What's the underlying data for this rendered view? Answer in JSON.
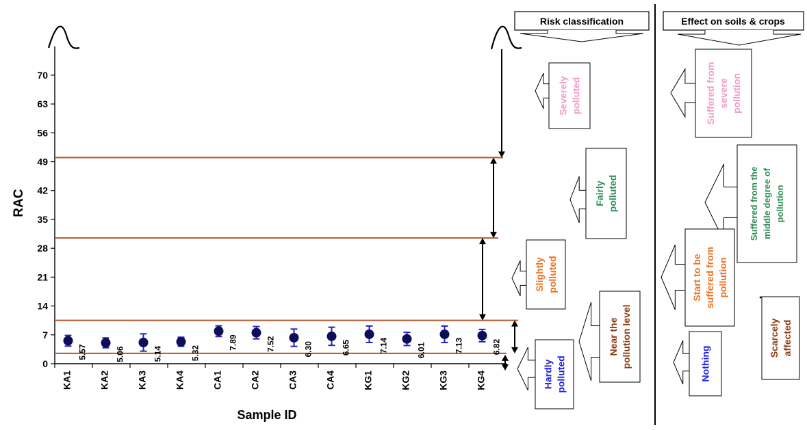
{
  "chart_data": {
    "type": "scatter",
    "xlabel": "Sample ID",
    "ylabel": "RAC",
    "ylim": [
      0,
      77
    ],
    "yticks": [
      0,
      7,
      14,
      21,
      28,
      35,
      42,
      49,
      56,
      63,
      70
    ],
    "grid": false,
    "categories": [
      "KA1",
      "KA2",
      "KA3",
      "KA4",
      "CA1",
      "CA2",
      "CA3",
      "CA4",
      "KG1",
      "KG2",
      "KG3",
      "KG4"
    ],
    "values": [
      5.57,
      5.06,
      5.14,
      5.32,
      7.89,
      7.52,
      6.3,
      6.65,
      7.14,
      6.01,
      7.13,
      6.82
    ],
    "value_labels": [
      "5.57",
      "5.06",
      "5.14",
      "5.32",
      "7.89",
      "7.52",
      "6.30",
      "6.65",
      "7.14",
      "6.01",
      "7.13",
      "6.82"
    ],
    "error_bars": [
      1.3,
      1.2,
      2.1,
      1.1,
      1.3,
      1.5,
      2.1,
      2.2,
      2.0,
      1.6,
      2.0,
      1.5
    ],
    "threshold_lines": [
      2.5,
      10.5,
      30.5,
      50
    ],
    "point_color": "#0d0d5a",
    "error_color": "#1f1fcc",
    "line_color": "#b5562a"
  },
  "panels": {
    "risk_header": "Risk classification",
    "effect_header": "Effect on soils & crops"
  },
  "risk_classes": [
    {
      "lines": [
        "Severely",
        "polluted"
      ],
      "color": "#f39bc6"
    },
    {
      "lines": [
        "Fairly",
        "polluted"
      ],
      "color": "#2e8b57"
    },
    {
      "lines": [
        "Slightly",
        "polluted"
      ],
      "color": "#ee6f1f"
    },
    {
      "lines": [
        "Near the",
        "pollution level"
      ],
      "color": "#8b3a10"
    },
    {
      "lines": [
        "Hardly",
        "polluted"
      ],
      "color": "#1f1fe0"
    }
  ],
  "effects": [
    {
      "lines": [
        "Suffered from",
        "severe",
        "pollution"
      ],
      "color": "#f39bc6"
    },
    {
      "lines": [
        "Suffered from the",
        "middle degree of",
        "pollution"
      ],
      "color": "#2e8b57"
    },
    {
      "lines": [
        "Start to be",
        "suffered from",
        "pollution"
      ],
      "color": "#ee6f1f"
    },
    {
      "lines": [
        "Scarcely",
        "affected"
      ],
      "color": "#8b3a10"
    },
    {
      "lines": [
        "Nothing"
      ],
      "color": "#1f1fe0"
    }
  ]
}
